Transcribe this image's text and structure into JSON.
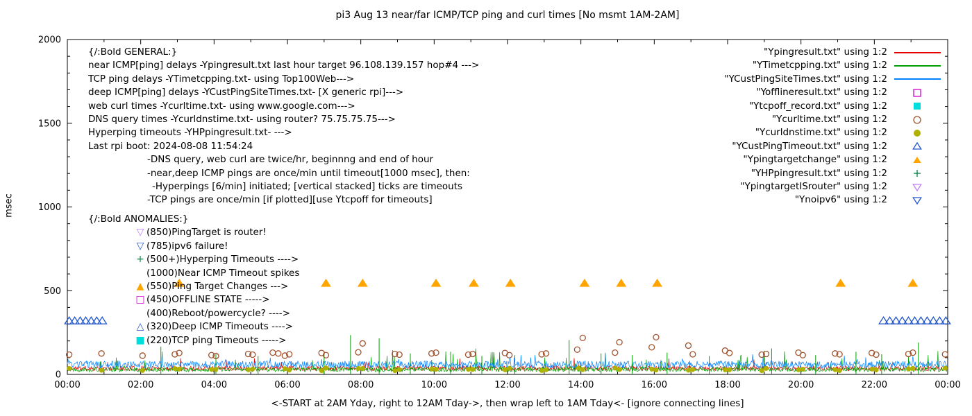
{
  "title": "pi3 Aug 13  near/far ICMP/TCP ping and curl times [No msmt 1AM-2AM]",
  "y_axis_label": "msec",
  "x_caption": "<-START at 2AM Yday, right to 12AM Tday->, then wrap left to 1AM Tday<- [ignore connecting lines]",
  "general_block": {
    "heading": "{/:Bold GENERAL:}",
    "lines": [
      {
        "text": "near ICMP[ping] delays -Ypingresult.txt last hour target 96.108.139.157 hop#4 --->",
        "indent": 0
      },
      {
        "text": "TCP ping delays -YTimetcpping.txt- using Top100Web--->",
        "indent": 0
      },
      {
        "text": "deep ICMP[ping] delays -YCustPingSiteTimes.txt- [X generic rpi]--->",
        "indent": 0
      },
      {
        "text": "web curl times -Ycurltime.txt- using www.google.com--->",
        "indent": 0
      },
      {
        "text": "DNS query times -Ycurldnstime.txt- using router? 75.75.75.75--->",
        "indent": 0
      },
      {
        "text": "Hyperping timeouts -YHPpingresult.txt- --->",
        "indent": 0
      },
      {
        "text": "Last rpi boot: 2024-08-08 11:54:24",
        "indent": 0
      },
      {
        "text": "-DNS query, web curl are twice/hr, beginnng and end of hour",
        "indent": 85
      },
      {
        "text": "-near,deep ICMP pings are once/min until timeout[1000 msec], then:",
        "indent": 85
      },
      {
        "text": "-Hyperpings [6/min] initiated; [vertical stacked] ticks are timeouts",
        "indent": 92
      },
      {
        "text": "-TCP pings are once/min [if plotted][use Ytcpoff for timeouts]",
        "indent": 85
      }
    ]
  },
  "anomalies_block": {
    "heading": "{/:Bold ANOMALIES:}",
    "items": [
      {
        "glyph": "▽",
        "color": "#c080ff",
        "text": "(850)PingTarget is router!"
      },
      {
        "glyph": "▽",
        "color": "#2255cc",
        "text": "(785)ipv6 failure!"
      },
      {
        "glyph": "+",
        "color": "#008040",
        "text": "(500+)Hyperping Timeouts ---->"
      },
      {
        "glyph": "",
        "color": "",
        "text": "(1000)Near ICMP Timeout spikes"
      },
      {
        "glyph": "▲",
        "color": "#ffa500",
        "text": "(550)Ping Target Changes --->"
      },
      {
        "glyph": "□",
        "color": "#d000d0",
        "text": "(450)OFFLINE STATE ----->"
      },
      {
        "glyph": "",
        "color": "",
        "text": "(400)Reboot/powercycle? ---->"
      },
      {
        "glyph": "△",
        "color": "#2255cc",
        "text": "(320)Deep ICMP Timeouts ---->"
      },
      {
        "glyph": "■",
        "color": "#00dddd",
        "text": "(220)TCP ping Timeouts ----->"
      }
    ]
  },
  "legend": {
    "entries": [
      {
        "label": "\"Ypingresult.txt\" using 1:2",
        "marker": "line",
        "color": "#e60000"
      },
      {
        "label": "\"YTimetcpping.txt\" using 1:2",
        "marker": "line",
        "color": "#00a000"
      },
      {
        "label": "\"YCustPingSiteTimes.txt\" using 1:2",
        "marker": "line",
        "color": "#0080ff"
      },
      {
        "label": "\"Yofflineresult.txt\" using 1:2",
        "marker": "square-open",
        "color": "#d000d0"
      },
      {
        "label": "\"Ytcpoff_record.txt\" using 1:2",
        "marker": "square-filled",
        "color": "#00dddd"
      },
      {
        "label": "\"Ycurltime.txt\" using 1:2",
        "marker": "circle-open",
        "color": "#a0522d"
      },
      {
        "label": "\"Ycurldnstime.txt\" using 1:2",
        "marker": "circle-filled",
        "color": "#b0b000"
      },
      {
        "label": "\"YCustPingTimeout.txt\" using 1:2",
        "marker": "triangle-up-open",
        "color": "#2255cc"
      },
      {
        "label": "\"Ypingtargetchange\" using 1:2",
        "marker": "triangle-up-filled",
        "color": "#ffa500"
      },
      {
        "label": "\"YHPpingresult.txt\" using 1:2",
        "marker": "plus",
        "color": "#008040"
      },
      {
        "label": "\"YpingtargetISrouter\" using 1:2",
        "marker": "triangle-down-open",
        "color": "#c080ff"
      },
      {
        "label": "\"Ynoipv6\" using 1:2",
        "marker": "triangle-down-open",
        "color": "#2255cc"
      }
    ]
  },
  "chart_data": {
    "type": "scatter",
    "title": "pi3 Aug 13  near/far ICMP/TCP ping and curl times [No msmt 1AM-2AM]",
    "xlabel": "<-START at 2AM Yday, right to 12AM Tday->, then wrap left to 1AM Tday<- [ignore connecting lines]",
    "ylabel": "msec",
    "ylim": [
      0,
      2000
    ],
    "xlim_hours": [
      0,
      24
    ],
    "grid": false,
    "legend_position": "top-right-inside",
    "x_ticks": [
      "00:00",
      "02:00",
      "04:00",
      "06:00",
      "08:00",
      "10:00",
      "12:00",
      "14:00",
      "16:00",
      "18:00",
      "20:00",
      "22:00",
      "00:00"
    ],
    "y_ticks": [
      0,
      500,
      1000,
      1500,
      2000
    ],
    "series": [
      {
        "name": "Ypingresult.txt",
        "type": "noise-line",
        "color": "#e60000",
        "base": 22,
        "jitter": 28,
        "spike_prob": 0.02,
        "spike_max": 70,
        "seed": 11
      },
      {
        "name": "YTimetcpping.txt",
        "type": "noise-line",
        "color": "#00a000",
        "base": 16,
        "jitter": 26,
        "spike_prob": 0.035,
        "spike_max": 120,
        "seed": 22
      },
      {
        "name": "YCustPingSiteTimes.txt",
        "type": "noise-line",
        "color": "#0080ff",
        "base": 38,
        "jitter": 42,
        "spike_prob": 0.02,
        "spike_max": 60,
        "seed": 33
      },
      {
        "name": "YHPpingresult.txt",
        "type": "vspikes",
        "color": "#00a000",
        "points": [
          [
            2.55,
            165
          ],
          [
            4.05,
            120
          ],
          [
            5.2,
            110
          ],
          [
            7.0,
            140
          ],
          [
            7.72,
            235
          ],
          [
            8.5,
            215
          ],
          [
            9.35,
            125
          ],
          [
            10.45,
            135
          ],
          [
            11.3,
            110
          ],
          [
            12.2,
            115
          ],
          [
            13.68,
            205
          ],
          [
            14.55,
            125
          ],
          [
            15.4,
            115
          ],
          [
            16.35,
            130
          ],
          [
            17.5,
            110
          ],
          [
            19.2,
            155
          ],
          [
            20.4,
            115
          ],
          [
            21.5,
            135
          ],
          [
            22.2,
            120
          ],
          [
            23.2,
            190
          ]
        ]
      },
      {
        "name": "Ycurltime.txt",
        "type": "points",
        "marker": "circle-open",
        "color": "#a0522d",
        "size": 4,
        "points": [
          [
            0.05,
            118
          ],
          [
            0.93,
            125
          ],
          [
            2.05,
            112
          ],
          [
            2.93,
            120
          ],
          [
            3.05,
            128
          ],
          [
            3.93,
            115
          ],
          [
            4.05,
            110
          ],
          [
            4.93,
            122
          ],
          [
            5.05,
            118
          ],
          [
            5.6,
            130
          ],
          [
            5.75,
            125
          ],
          [
            5.93,
            112
          ],
          [
            6.05,
            120
          ],
          [
            6.93,
            128
          ],
          [
            7.05,
            115
          ],
          [
            7.93,
            132
          ],
          [
            8.05,
            185
          ],
          [
            8.93,
            122
          ],
          [
            9.05,
            118
          ],
          [
            9.93,
            125
          ],
          [
            10.05,
            130
          ],
          [
            10.93,
            118
          ],
          [
            11.05,
            122
          ],
          [
            11.93,
            128
          ],
          [
            12.05,
            115
          ],
          [
            12.93,
            120
          ],
          [
            13.05,
            125
          ],
          [
            13.9,
            148
          ],
          [
            14.05,
            218
          ],
          [
            14.93,
            130
          ],
          [
            15.05,
            192
          ],
          [
            15.93,
            162
          ],
          [
            16.05,
            222
          ],
          [
            16.93,
            172
          ],
          [
            17.05,
            120
          ],
          [
            17.93,
            142
          ],
          [
            18.05,
            128
          ],
          [
            18.93,
            118
          ],
          [
            19.05,
            122
          ],
          [
            19.93,
            130
          ],
          [
            20.05,
            115
          ],
          [
            20.93,
            125
          ],
          [
            21.05,
            120
          ],
          [
            21.93,
            128
          ],
          [
            22.05,
            118
          ],
          [
            22.93,
            122
          ],
          [
            23.05,
            130
          ],
          [
            23.93,
            120
          ]
        ]
      },
      {
        "name": "Ycurldnstime.txt",
        "type": "dot-pattern",
        "marker": "circle-filled",
        "color": "#b0b000",
        "size": 3.5,
        "minutes": [
          3,
          56
        ],
        "value": 30,
        "jitter": 8,
        "skip_hours": [
          1
        ],
        "seed": 44
      },
      {
        "name": "YCustPingTimeout.txt",
        "type": "points-const",
        "marker": "triangle-up-open",
        "color": "#2255cc",
        "size": 5.5,
        "value": 320,
        "hours": [
          0.05,
          0.2,
          0.35,
          0.5,
          0.65,
          0.8,
          0.95,
          22.25,
          22.42,
          22.59,
          22.76,
          22.93,
          23.1,
          23.27,
          23.44,
          23.61,
          23.78,
          23.95
        ]
      },
      {
        "name": "Ypingtargetchange",
        "type": "points-const",
        "marker": "triangle-up-filled",
        "color": "#ffa500",
        "size": 6.5,
        "value": 545,
        "hours": [
          3.05,
          7.05,
          8.05,
          10.05,
          11.08,
          12.08,
          14.1,
          15.1,
          16.08,
          21.08,
          23.05
        ]
      }
    ]
  }
}
